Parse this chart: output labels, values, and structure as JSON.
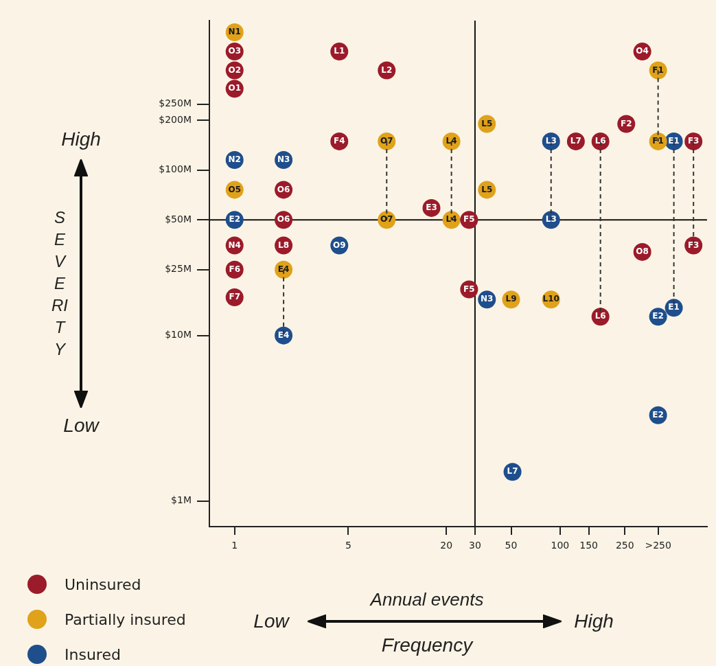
{
  "chart_data": {
    "type": "scatter",
    "xlabel": "Annual events",
    "log": "xy",
    "xlim": [
      0.7,
      800
    ],
    "ylim": [
      0.7,
      800
    ],
    "xticks": [
      1,
      5,
      20,
      30,
      50,
      100,
      150,
      250,
      {
        "value": 400,
        "label": ">250"
      }
    ],
    "yticks": [
      {
        "value": 1,
        "label": "$1M"
      },
      {
        "value": 10,
        "label": "$10M"
      },
      {
        "value": 25,
        "label": "$25M"
      },
      {
        "value": 50,
        "label": "$50M"
      },
      {
        "value": 100,
        "label": "$100M"
      },
      {
        "value": 200,
        "label": "$200M"
      },
      {
        "value": 250,
        "label": "$250M"
      }
    ],
    "grid": false,
    "legend": "bottom left",
    "marker": "circle",
    "ref_lines": [
      {
        "axis": "x",
        "value": 30,
        "color": "#111111"
      },
      {
        "axis": "y",
        "value": 50,
        "color": "#111111"
      }
    ],
    "series": [
      {
        "name": "Uninsured",
        "color": "#9b1b2a",
        "x": [
          1,
          4.4,
          1,
          8.6,
          1,
          320,
          255,
          4.4,
          125,
          177,
          660,
          2,
          16.2,
          2,
          27.6,
          1,
          2,
          320,
          660,
          1,
          1,
          27.6,
          177
        ],
        "values": [
          520,
          520,
          400,
          400,
          310,
          520,
          190,
          149,
          149,
          149,
          149,
          76,
          59,
          50,
          50,
          35,
          35,
          32,
          35,
          25,
          17,
          19,
          13
        ]
      },
      {
        "name": "Partially insured",
        "color": "#e0a21a",
        "x": [
          1,
          400,
          35.5,
          8.6,
          21.5,
          400,
          1,
          35.5,
          8.6,
          21.5,
          2,
          50,
          88
        ],
        "values": [
          680,
          400,
          190,
          149,
          149,
          149,
          76,
          76,
          50,
          50,
          25,
          16.5,
          16.5
        ]
      },
      {
        "name": "Insured",
        "color": "#1f4e8c",
        "x": [
          88,
          500,
          1,
          2,
          1,
          88,
          4.4,
          35.5,
          500,
          400,
          2,
          400,
          51
        ],
        "values": [
          149,
          149,
          115,
          115,
          50,
          50,
          35,
          16.5,
          14.7,
          13,
          10,
          3.3,
          1.5
        ]
      },
      {
        "type": "line",
        "color": "#333333",
        "line_style": "dashed",
        "marker": "none",
        "x": [
          400,
          400,
          null,
          8.6,
          8.6,
          null,
          21.5,
          21.5,
          null,
          88,
          88,
          null,
          177,
          177,
          null,
          500,
          500,
          null,
          660,
          660,
          null,
          2,
          2
        ],
        "values": [
          400,
          149,
          null,
          149,
          50,
          null,
          149,
          50,
          null,
          149,
          50,
          null,
          149,
          13,
          null,
          149,
          14.7,
          null,
          149,
          35,
          null,
          25,
          10
        ]
      }
    ],
    "annotations": [
      "High",
      "Low",
      "Low",
      "High",
      "Frequency",
      "SEVERITY",
      {
        "text": "O3",
        "x": 1,
        "y": 520
      },
      {
        "text": "L1",
        "x": 4.4,
        "y": 520
      },
      {
        "text": "O2",
        "x": 1,
        "y": 400
      },
      {
        "text": "L2",
        "x": 8.6,
        "y": 400
      },
      {
        "text": "O1",
        "x": 1,
        "y": 310
      },
      {
        "text": "O4",
        "x": 320,
        "y": 520
      },
      {
        "text": "F2",
        "x": 255,
        "y": 190
      },
      {
        "text": "F4",
        "x": 4.4,
        "y": 149
      },
      {
        "text": "L7",
        "x": 125,
        "y": 149
      },
      {
        "text": "L6",
        "x": 177,
        "y": 149
      },
      {
        "text": "F3",
        "x": 660,
        "y": 149
      },
      {
        "text": "O6",
        "x": 2,
        "y": 76
      },
      {
        "text": "E3",
        "x": 16.2,
        "y": 59
      },
      {
        "text": "O6",
        "x": 2,
        "y": 50
      },
      {
        "text": "F5",
        "x": 27.6,
        "y": 50
      },
      {
        "text": "N4",
        "x": 1,
        "y": 35
      },
      {
        "text": "L8",
        "x": 2,
        "y": 35
      },
      {
        "text": "O8",
        "x": 320,
        "y": 32
      },
      {
        "text": "F3",
        "x": 660,
        "y": 35
      },
      {
        "text": "F6",
        "x": 1,
        "y": 25
      },
      {
        "text": "F7",
        "x": 1,
        "y": 17
      },
      {
        "text": "F5",
        "x": 27.6,
        "y": 19
      },
      {
        "text": "L6",
        "x": 177,
        "y": 13
      },
      {
        "text": "N1",
        "x": 1,
        "y": 680
      },
      {
        "text": "F1",
        "x": 400,
        "y": 400
      },
      {
        "text": "L5",
        "x": 35.5,
        "y": 190
      },
      {
        "text": "O7",
        "x": 8.6,
        "y": 149
      },
      {
        "text": "L4",
        "x": 21.5,
        "y": 149
      },
      {
        "text": "F1",
        "x": 400,
        "y": 149
      },
      {
        "text": "O5",
        "x": 1,
        "y": 76
      },
      {
        "text": "L5",
        "x": 35.5,
        "y": 76
      },
      {
        "text": "O7",
        "x": 8.6,
        "y": 50
      },
      {
        "text": "L4",
        "x": 21.5,
        "y": 50
      },
      {
        "text": "E4",
        "x": 2,
        "y": 25
      },
      {
        "text": "L9",
        "x": 50,
        "y": 16.5
      },
      {
        "text": "L10",
        "x": 88,
        "y": 16.5
      },
      {
        "text": "L3",
        "x": 88,
        "y": 149
      },
      {
        "text": "E1",
        "x": 500,
        "y": 149
      },
      {
        "text": "N2",
        "x": 1,
        "y": 115
      },
      {
        "text": "N3",
        "x": 2,
        "y": 115
      },
      {
        "text": "E2",
        "x": 1,
        "y": 50
      },
      {
        "text": "L3",
        "x": 88,
        "y": 50
      },
      {
        "text": "O9",
        "x": 4.4,
        "y": 35
      },
      {
        "text": "N3",
        "x": 35.5,
        "y": 16.5
      },
      {
        "text": "E1",
        "x": 500,
        "y": 14.7
      },
      {
        "text": "E2",
        "x": 400,
        "y": 13
      },
      {
        "text": "E4",
        "x": 2,
        "y": 10
      },
      {
        "text": "E2",
        "x": 400,
        "y": 3.3
      },
      {
        "text": "L7",
        "x": 51,
        "y": 1.5
      }
    ]
  }
}
